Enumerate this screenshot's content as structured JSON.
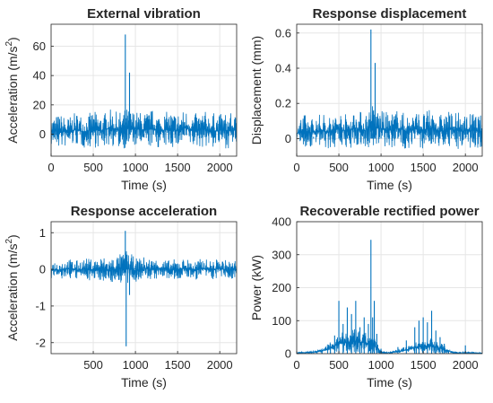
{
  "colors": {
    "series": "#0072BD",
    "grid": "#e6e6e6",
    "axis": "#262626"
  },
  "chart_data": [
    {
      "type": "line",
      "title": "External vibration",
      "xlabel": "Time (s)",
      "ylabel": "Acceleration (m/s",
      "ylabel_sup": "2",
      "ylabel_close": ")",
      "xlim": [
        0,
        2200
      ],
      "ylim": [
        -15,
        75
      ],
      "xticks": [
        0,
        500,
        1000,
        1500,
        2000
      ],
      "yticks": [
        0,
        20,
        40,
        60
      ],
      "grid": true,
      "series": [
        {
          "x": [
            0,
            100,
            200,
            300,
            400,
            500,
            600,
            700,
            800,
            880,
            890,
            900,
            930,
            1000,
            1100,
            1200,
            1300,
            1400,
            1500,
            1600,
            1700,
            1800,
            1900,
            2000,
            2100,
            2200
          ],
          "y": [
            0,
            3,
            -2,
            4,
            0,
            2,
            -3,
            5,
            2,
            68,
            8,
            0,
            42,
            3,
            -2,
            5,
            0,
            4,
            -3,
            6,
            0,
            3,
            2,
            5,
            -1,
            0
          ],
          "envelope": [
            [
              0,
              -8,
              12
            ],
            [
              100,
              -10,
              14
            ],
            [
              200,
              -9,
              12
            ],
            [
              300,
              -8,
              15
            ],
            [
              400,
              -10,
              13
            ],
            [
              500,
              -9,
              16
            ],
            [
              600,
              -10,
              14
            ],
            [
              700,
              -8,
              17
            ],
            [
              800,
              -10,
              15
            ],
            [
              900,
              -10,
              18
            ],
            [
              1000,
              -9,
              16
            ],
            [
              1100,
              -10,
              15
            ],
            [
              1200,
              -9,
              17
            ],
            [
              1300,
              -10,
              14
            ],
            [
              1400,
              -9,
              16
            ],
            [
              1500,
              -10,
              15
            ],
            [
              1600,
              -8,
              17
            ],
            [
              1700,
              -10,
              14
            ],
            [
              1800,
              -9,
              16
            ],
            [
              1900,
              -10,
              15
            ],
            [
              2000,
              -9,
              14
            ],
            [
              2100,
              -10,
              15
            ],
            [
              2200,
              -8,
              13
            ]
          ]
        }
      ]
    },
    {
      "type": "line",
      "title": "Response displacement",
      "xlabel": "Time (s)",
      "ylabel": "Displacement (mm)",
      "xlim": [
        0,
        2200
      ],
      "ylim": [
        -0.1,
        0.65
      ],
      "xticks": [
        0,
        500,
        1000,
        1500,
        2000
      ],
      "yticks": [
        0,
        0.2,
        0.4,
        0.6
      ],
      "grid": true,
      "series": [
        {
          "x": [
            0,
            100,
            200,
            300,
            400,
            500,
            600,
            700,
            800,
            880,
            890,
            900,
            930,
            1000,
            1100,
            1200,
            1300,
            1400,
            1500,
            1600,
            1700,
            1800,
            1900,
            2000,
            2100,
            2200
          ],
          "y": [
            0.02,
            0.05,
            0.01,
            0.04,
            0.03,
            0.06,
            0.02,
            0.05,
            0.04,
            0.62,
            0.1,
            0.03,
            0.43,
            0.05,
            0.02,
            0.06,
            0.03,
            0.05,
            0.02,
            0.06,
            0.03,
            0.05,
            0.04,
            0.06,
            0.03,
            0.02
          ],
          "envelope": [
            [
              0,
              -0.06,
              0.12
            ],
            [
              100,
              -0.06,
              0.14
            ],
            [
              200,
              -0.05,
              0.12
            ],
            [
              300,
              -0.06,
              0.15
            ],
            [
              400,
              -0.06,
              0.13
            ],
            [
              500,
              -0.05,
              0.16
            ],
            [
              600,
              -0.06,
              0.14
            ],
            [
              700,
              -0.05,
              0.17
            ],
            [
              800,
              -0.06,
              0.15
            ],
            [
              900,
              -0.06,
              0.2
            ],
            [
              1000,
              -0.05,
              0.16
            ],
            [
              1100,
              -0.06,
              0.15
            ],
            [
              1200,
              -0.05,
              0.17
            ],
            [
              1300,
              -0.06,
              0.14
            ],
            [
              1400,
              -0.05,
              0.16
            ],
            [
              1500,
              -0.06,
              0.15
            ],
            [
              1600,
              -0.05,
              0.17
            ],
            [
              1700,
              -0.06,
              0.14
            ],
            [
              1800,
              -0.05,
              0.16
            ],
            [
              1900,
              -0.06,
              0.15
            ],
            [
              2000,
              -0.05,
              0.14
            ],
            [
              2100,
              -0.06,
              0.15
            ],
            [
              2200,
              -0.05,
              0.13
            ]
          ]
        }
      ]
    },
    {
      "type": "line",
      "title": "Response acceleration",
      "xlabel": "Time (s)",
      "ylabel": "Acceleration (m/s",
      "ylabel_sup": "2",
      "ylabel_close": ")",
      "xlim": [
        0,
        2200
      ],
      "ylim": [
        -2.3,
        1.3
      ],
      "xticks": [
        500,
        1000,
        1500,
        2000
      ],
      "yticks": [
        -2,
        -1,
        0,
        1
      ],
      "grid": true,
      "series": [
        {
          "x": [
            0,
            100,
            200,
            300,
            400,
            500,
            600,
            700,
            800,
            870,
            880,
            890,
            900,
            930,
            1000,
            1100,
            1200,
            1300,
            1400,
            1500,
            1600,
            1700,
            1800,
            1900,
            2000,
            2100,
            2200
          ],
          "y": [
            0,
            0.1,
            -0.1,
            0.05,
            0,
            0.1,
            -0.1,
            0.05,
            0,
            0.3,
            1.05,
            -2.1,
            0.4,
            -0.7,
            0.1,
            -0.05,
            0.1,
            0,
            -0.1,
            0.05,
            0.1,
            -0.05,
            0,
            0.1,
            -0.05,
            0.05,
            0
          ],
          "envelope": [
            [
              0,
              -0.25,
              0.25
            ],
            [
              100,
              -0.3,
              0.25
            ],
            [
              200,
              -0.25,
              0.3
            ],
            [
              300,
              -0.3,
              0.25
            ],
            [
              400,
              -0.25,
              0.3
            ],
            [
              500,
              -0.35,
              0.3
            ],
            [
              600,
              -0.3,
              0.35
            ],
            [
              700,
              -0.4,
              0.35
            ],
            [
              800,
              -0.35,
              0.4
            ],
            [
              900,
              -0.5,
              0.55
            ],
            [
              1000,
              -0.35,
              0.3
            ],
            [
              1100,
              -0.3,
              0.35
            ],
            [
              1200,
              -0.3,
              0.3
            ],
            [
              1300,
              -0.25,
              0.3
            ],
            [
              1400,
              -0.3,
              0.25
            ],
            [
              1500,
              -0.3,
              0.3
            ],
            [
              1600,
              -0.25,
              0.3
            ],
            [
              1700,
              -0.3,
              0.25
            ],
            [
              1800,
              -0.25,
              0.3
            ],
            [
              1900,
              -0.3,
              0.25
            ],
            [
              2000,
              -0.25,
              0.3
            ],
            [
              2100,
              -0.3,
              0.25
            ],
            [
              2200,
              -0.25,
              0.25
            ]
          ]
        }
      ]
    },
    {
      "type": "line",
      "title": "Recoverable rectified power",
      "xlabel": "Time (s)",
      "ylabel": "Power (kW)",
      "xlim": [
        0,
        2200
      ],
      "ylim": [
        0,
        400
      ],
      "xticks": [
        0,
        500,
        1000,
        1500,
        2000
      ],
      "yticks": [
        0,
        100,
        200,
        300,
        400
      ],
      "grid": true,
      "series": [
        {
          "x": [
            0,
            100,
            200,
            300,
            400,
            450,
            500,
            550,
            600,
            650,
            700,
            750,
            800,
            850,
            880,
            900,
            920,
            950,
            1000,
            1050,
            1100,
            1200,
            1300,
            1400,
            1450,
            1500,
            1550,
            1600,
            1650,
            1700,
            1750,
            1800,
            1900,
            2000,
            2100,
            2200
          ],
          "y": [
            2,
            3,
            5,
            10,
            30,
            55,
            160,
            90,
            140,
            120,
            160,
            80,
            110,
            90,
            345,
            110,
            160,
            60,
            15,
            5,
            4,
            20,
            40,
            80,
            100,
            110,
            95,
            130,
            70,
            50,
            30,
            8,
            3,
            25,
            5,
            2
          ],
          "envelope": [
            [
              0,
              0,
              4
            ],
            [
              100,
              0,
              6
            ],
            [
              200,
              0,
              10
            ],
            [
              300,
              0,
              18
            ],
            [
              400,
              0,
              35
            ],
            [
              500,
              0,
              60
            ],
            [
              600,
              0,
              70
            ],
            [
              700,
              0,
              75
            ],
            [
              800,
              0,
              65
            ],
            [
              900,
              0,
              60
            ],
            [
              950,
              0,
              35
            ],
            [
              1000,
              0,
              8
            ],
            [
              1050,
              0,
              5
            ],
            [
              1100,
              0,
              6
            ],
            [
              1200,
              0,
              14
            ],
            [
              1300,
              0,
              22
            ],
            [
              1400,
              0,
              35
            ],
            [
              1500,
              0,
              45
            ],
            [
              1600,
              0,
              48
            ],
            [
              1700,
              0,
              35
            ],
            [
              1800,
              0,
              15
            ],
            [
              1900,
              0,
              5
            ],
            [
              2000,
              0,
              6
            ],
            [
              2100,
              0,
              4
            ],
            [
              2200,
              0,
              3
            ]
          ]
        }
      ]
    }
  ]
}
